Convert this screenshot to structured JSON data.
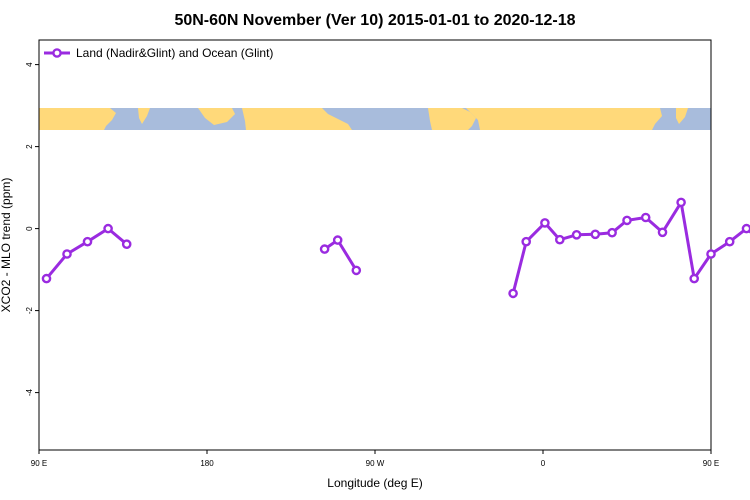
{
  "chart_data": {
    "type": "line",
    "title": "50N-60N November (Ver 10)   2015-01-01 to 2020-12-18",
    "xlabel": "Longitude (deg E)",
    "ylabel": "XCO2 - MLO trend (ppm)",
    "xlim": [
      90,
      450
    ],
    "ylim": [
      -5.4,
      4.6
    ],
    "x_ticks": [
      {
        "value": 90,
        "label": "90 E"
      },
      {
        "value": 180,
        "label": "180"
      },
      {
        "value": 270,
        "label": "90 W"
      },
      {
        "value": 360,
        "label": "0"
      },
      {
        "value": 450,
        "label": "90 E"
      },
      {
        "value": 540,
        "label": "180"
      }
    ],
    "y_ticks": [
      {
        "value": 4,
        "label": "4"
      },
      {
        "value": 2,
        "label": "2"
      },
      {
        "value": 0,
        "label": "0"
      },
      {
        "value": -2,
        "label": "-2"
      },
      {
        "value": -4,
        "label": "-4"
      }
    ],
    "xlim_full": [
      90,
      540
    ],
    "map_strip": {
      "y_range": [
        2.5,
        3.0
      ],
      "ocean_color": "#a8bcdc",
      "land_color": "#ffd97a"
    },
    "legend": {
      "position": "top-left",
      "label": "Land (Nadir&Glint) and Ocean (Glint)"
    },
    "series": [
      {
        "name": "Land (Nadir&Glint) and Ocean (Glint)",
        "color": "#9a2be0",
        "segments": [
          [
            [
              94,
              -1.22
            ],
            [
              105,
              -0.62
            ],
            [
              116,
              -0.32
            ],
            [
              127,
              0.0
            ],
            [
              137,
              -0.38
            ]
          ],
          [
            [
              243,
              -0.5
            ],
            [
              250,
              -0.28
            ],
            [
              260,
              -1.02
            ]
          ],
          [
            [
              344,
              -1.58
            ],
            [
              351,
              -0.32
            ],
            [
              361,
              0.14
            ],
            [
              369,
              -0.27
            ],
            [
              378,
              -0.15
            ],
            [
              388,
              -0.14
            ],
            [
              397,
              -0.1
            ],
            [
              405,
              0.2
            ],
            [
              415,
              0.27
            ],
            [
              424,
              -0.09
            ],
            [
              434,
              0.64
            ],
            [
              441,
              -1.22
            ],
            [
              450,
              -0.62
            ],
            [
              460,
              -0.32
            ],
            [
              469,
              0.0
            ],
            [
              479,
              -0.38
            ]
          ]
        ]
      }
    ]
  }
}
